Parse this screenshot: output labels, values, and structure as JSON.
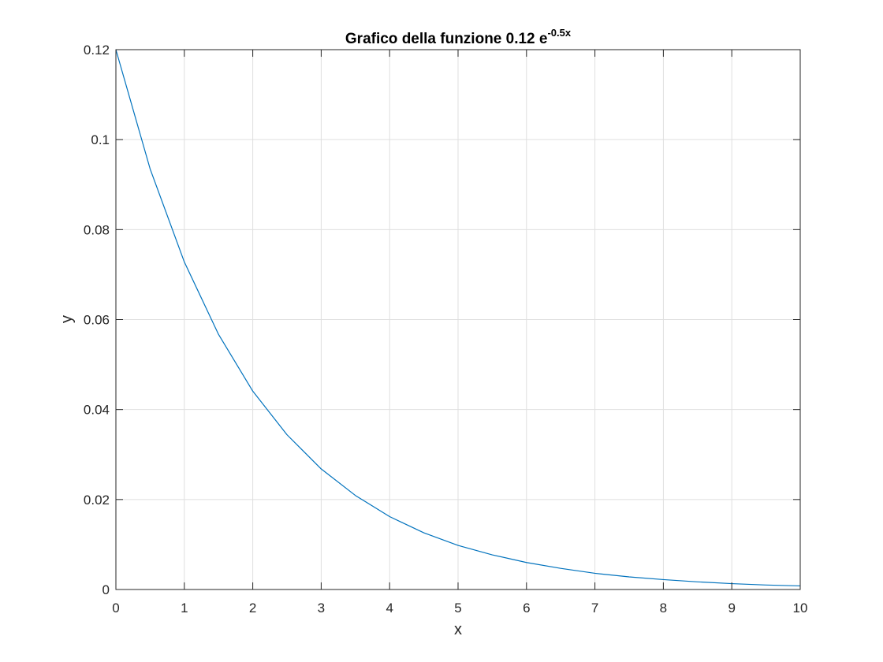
{
  "chart_data": {
    "type": "line",
    "title": "Grafico della funzione 0.12 e",
    "title_exponent": "-0.5x",
    "xlabel": "x",
    "ylabel": "y",
    "xlim": [
      0,
      10
    ],
    "ylim": [
      0,
      0.12
    ],
    "grid": true,
    "x_ticks": [
      0,
      1,
      2,
      3,
      4,
      5,
      6,
      7,
      8,
      9,
      10
    ],
    "x_tick_labels": [
      "0",
      "1",
      "2",
      "3",
      "4",
      "5",
      "6",
      "7",
      "8",
      "9",
      "10"
    ],
    "y_ticks": [
      0,
      0.02,
      0.04,
      0.06,
      0.08,
      0.1,
      0.12
    ],
    "y_tick_labels": [
      "0",
      "0.02",
      "0.04",
      "0.06",
      "0.08",
      "0.1",
      "0.12"
    ],
    "series": [
      {
        "color": "#0072bd",
        "x": [
          0,
          0.5,
          1,
          1.5,
          2,
          2.5,
          3,
          3.5,
          4,
          4.5,
          5,
          5.5,
          6,
          6.5,
          7,
          7.5,
          8,
          8.5,
          9,
          9.5,
          10
        ],
        "y": [
          0.12,
          0.0935,
          0.0728,
          0.0567,
          0.0441,
          0.0344,
          0.0268,
          0.0209,
          0.0162,
          0.0126,
          0.0098,
          0.0077,
          0.006,
          0.0047,
          0.0036,
          0.0028,
          0.0022,
          0.0017,
          0.0013,
          0.001,
          0.0008
        ]
      }
    ]
  }
}
